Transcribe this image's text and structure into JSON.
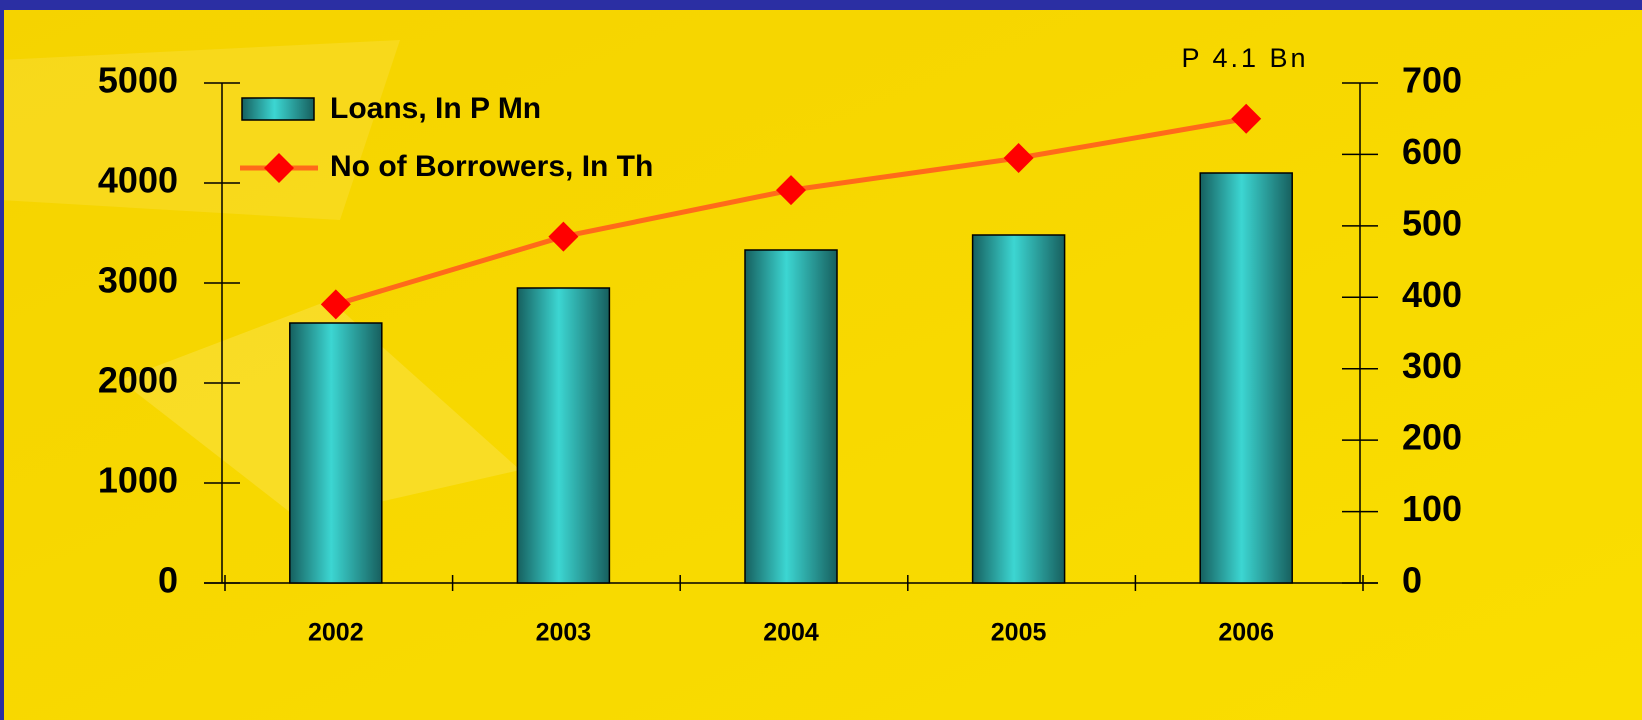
{
  "chart_data": {
    "type": "bar-line",
    "categories": [
      "2002",
      "2003",
      "2004",
      "2005",
      "2006"
    ],
    "series": [
      {
        "name": "Loans, In P Mn",
        "type": "bar",
        "color": "#33c9c6",
        "values": [
          2600,
          2950,
          3330,
          3480,
          4100
        ]
      },
      {
        "name": "No of Borrowers, In Th",
        "type": "line",
        "axis": "y2",
        "color": "#ff6a1a",
        "marker_color": "#ff0000",
        "values": [
          390,
          485,
          550,
          595,
          650
        ]
      }
    ],
    "annotations": [
      {
        "text": "P 4.1 Bn",
        "category": 4
      }
    ],
    "ylim": [
      0,
      5000
    ],
    "yticks": [
      0,
      1000,
      2000,
      3000,
      4000,
      5000
    ],
    "y2lim": [
      0,
      700
    ],
    "y2ticks": [
      0,
      100,
      200,
      300,
      400,
      500,
      600,
      700
    ]
  }
}
